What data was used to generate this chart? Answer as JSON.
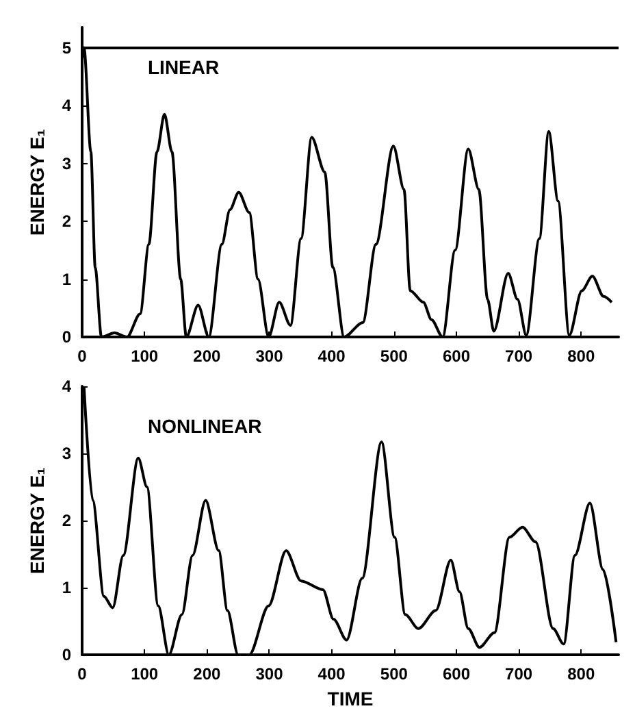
{
  "chart_data": [
    {
      "type": "line",
      "ylabel": "ENERGY E₁",
      "annotations": [
        "LINEAR"
      ],
      "xlim": [
        0,
        860
      ],
      "xticks": [
        0,
        100,
        200,
        300,
        400,
        500,
        600,
        700,
        800
      ],
      "ylim": [
        0,
        5.35
      ],
      "yticks": [
        0,
        1,
        2,
        3,
        4,
        5
      ],
      "grid": false,
      "ref_lines": [
        {
          "axis": "y",
          "value": 5,
          "color": "#000000"
        }
      ],
      "series": [
        {
          "color": "#000000",
          "x": [
            0,
            3,
            14,
            21,
            31,
            52,
            72,
            93,
            107,
            120,
            132,
            144,
            158,
            167,
            186,
            203,
            224,
            237,
            251,
            268,
            282,
            299,
            316,
            334,
            351,
            368,
            389,
            402,
            420,
            450,
            471,
            499,
            516,
            526,
            547,
            560,
            578,
            598,
            619,
            636,
            650,
            660,
            683,
            698,
            712,
            733,
            748,
            763,
            781,
            801,
            818,
            836,
            849
          ],
          "values": [
            4.8,
            5.0,
            3.2,
            1.2,
            0,
            0.07,
            0,
            0.4,
            1.6,
            3.2,
            3.85,
            3.2,
            1.0,
            0,
            0.55,
            0,
            1.6,
            2.2,
            2.5,
            2.15,
            1.0,
            0,
            0.6,
            0.2,
            1.7,
            3.45,
            2.85,
            1.2,
            0,
            0.25,
            1.6,
            3.3,
            2.55,
            0.8,
            0.6,
            0.3,
            0,
            1.5,
            3.25,
            2.55,
            0.65,
            0.1,
            1.1,
            0.65,
            0.03,
            1.7,
            3.55,
            2.35,
            0.03,
            0.8,
            1.05,
            0.7,
            0.6
          ]
        }
      ]
    },
    {
      "type": "line",
      "ylabel": "ENERGY E₁",
      "xlabel": "TIME",
      "annotations": [
        "NONLINEAR"
      ],
      "xlim": [
        0,
        860
      ],
      "xticks": [
        0,
        100,
        200,
        300,
        400,
        500,
        600,
        700,
        800
      ],
      "ylim": [
        0,
        4
      ],
      "yticks": [
        0,
        1,
        2,
        3,
        4
      ],
      "grid": false,
      "series": [
        {
          "color": "#000000",
          "x": [
            3,
            17,
            35,
            49,
            66,
            90,
            104,
            122,
            139,
            160,
            177,
            198,
            219,
            233,
            250,
            268,
            299,
            327,
            351,
            386,
            403,
            424,
            449,
            480,
            501,
            518,
            539,
            567,
            591,
            605,
            619,
            637,
            661,
            685,
            706,
            727,
            755,
            772,
            790,
            814,
            835,
            856
          ],
          "values": [
            4.0,
            2.3,
            0.87,
            0.7,
            1.48,
            2.93,
            2.5,
            0.73,
            0,
            0.6,
            1.48,
            2.3,
            1.55,
            0.66,
            0,
            0,
            0.73,
            1.55,
            1.1,
            0.97,
            0.53,
            0.22,
            1.14,
            3.17,
            1.75,
            0.6,
            0.39,
            0.66,
            1.41,
            0.94,
            0.39,
            0.11,
            0.33,
            1.75,
            1.9,
            1.68,
            0.39,
            0.16,
            1.48,
            2.26,
            1.27,
            0.19
          ]
        }
      ]
    }
  ]
}
